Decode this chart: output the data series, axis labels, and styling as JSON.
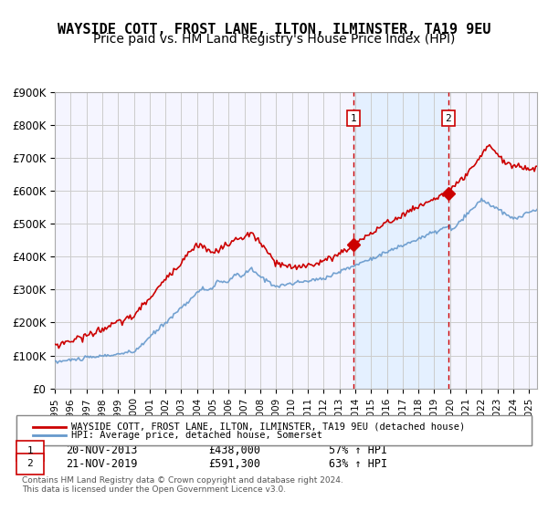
{
  "title": "WAYSIDE COTT, FROST LANE, ILTON, ILMINSTER, TA19 9EU",
  "subtitle": "Price paid vs. HM Land Registry's House Price Index (HPI)",
  "xlabel": "",
  "ylabel": "",
  "ylim": [
    0,
    900000
  ],
  "yticks": [
    0,
    100000,
    200000,
    300000,
    400000,
    500000,
    600000,
    700000,
    800000,
    900000
  ],
  "ytick_labels": [
    "£0",
    "£100K",
    "£200K",
    "£300K",
    "£400K",
    "£500K",
    "£600K",
    "£700K",
    "£800K",
    "£900K"
  ],
  "xlim_start": 1995.0,
  "xlim_end": 2025.5,
  "xtick_years": [
    1995,
    1996,
    1997,
    1998,
    1999,
    2000,
    2001,
    2002,
    2003,
    2004,
    2005,
    2006,
    2007,
    2008,
    2009,
    2010,
    2011,
    2012,
    2013,
    2014,
    2015,
    2016,
    2017,
    2018,
    2019,
    2020,
    2021,
    2022,
    2023,
    2024,
    2025
  ],
  "house_color": "#cc0000",
  "hpi_color": "#6699cc",
  "hpi_fill_color": "#ddeeff",
  "vline_color": "#cc0000",
  "shade_color": "#ddeeff",
  "sale1_x": 2013.89,
  "sale1_y": 438000,
  "sale2_x": 2019.89,
  "sale2_y": 591300,
  "legend_house": "WAYSIDE COTT, FROST LANE, ILTON, ILMINSTER, TA19 9EU (detached house)",
  "legend_hpi": "HPI: Average price, detached house, Somerset",
  "note1_label": "1",
  "note1_date": "20-NOV-2013",
  "note1_price": "£438,000",
  "note1_pct": "57% ↑ HPI",
  "note2_label": "2",
  "note2_date": "21-NOV-2019",
  "note2_price": "£591,300",
  "note2_pct": "63% ↑ HPI",
  "footer": "Contains HM Land Registry data © Crown copyright and database right 2024.\nThis data is licensed under the Open Government Licence v3.0.",
  "background_color": "#f5f5ff",
  "grid_color": "#cccccc",
  "title_fontsize": 11,
  "subtitle_fontsize": 10
}
